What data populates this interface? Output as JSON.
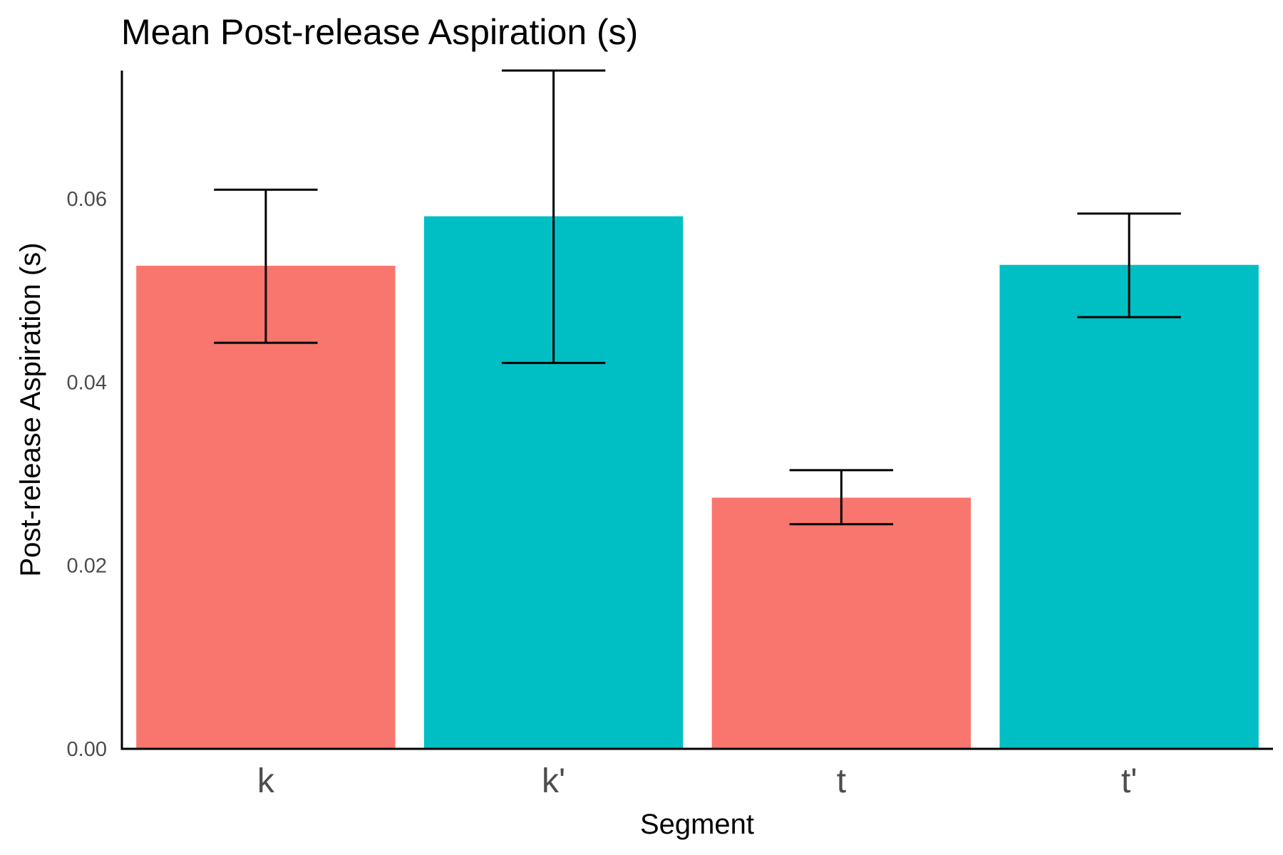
{
  "chart_data": {
    "type": "bar",
    "title": "Mean Post-release Aspiration (s)",
    "xlabel": "Segment",
    "ylabel": "Post-release Aspiration (s)",
    "categories": [
      "k",
      "k'",
      "t",
      "t'"
    ],
    "values": [
      0.0527,
      0.0581,
      0.0274,
      0.0528
    ],
    "error_low": [
      0.0443,
      0.0421,
      0.0245,
      0.0471
    ],
    "error_high": [
      0.061,
      0.074,
      0.0304,
      0.0584
    ],
    "colors": [
      "#F8766D",
      "#00BFC4",
      "#F8766D",
      "#00BFC4"
    ],
    "ylim": [
      0,
      0.074
    ],
    "yticks": [
      0.0,
      0.02,
      0.04,
      0.06
    ],
    "ytick_labels": [
      "0.00",
      "0.02",
      "0.04",
      "0.06"
    ],
    "grid": false,
    "legend": "none"
  }
}
